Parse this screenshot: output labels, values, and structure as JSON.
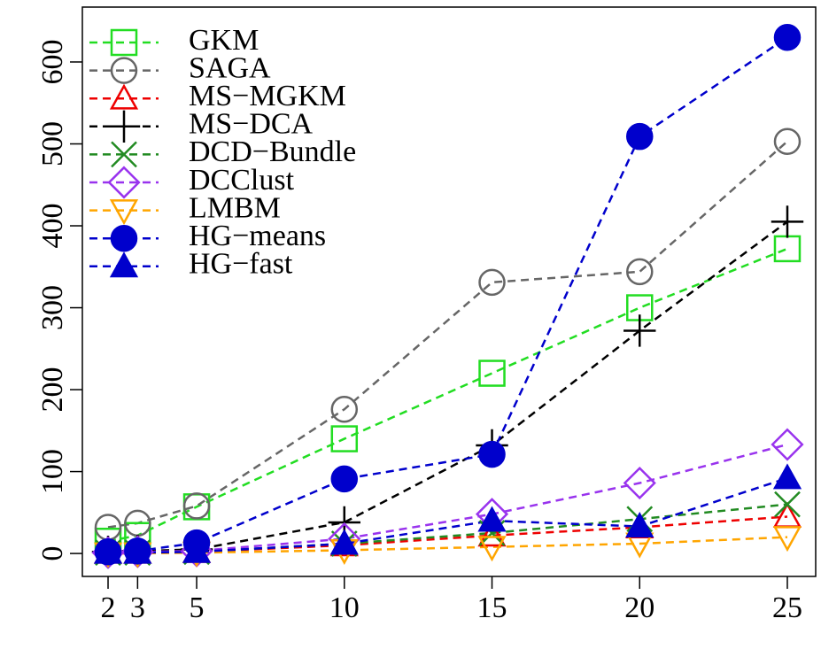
{
  "chart_data": {
    "type": "line",
    "x": [
      2,
      3,
      5,
      10,
      15,
      20,
      25
    ],
    "xlim": [
      1.13,
      25.96
    ],
    "xticks": [
      2,
      3,
      5,
      10,
      15,
      20,
      25
    ],
    "ylim": [
      -28,
      667
    ],
    "yticks": [
      0,
      100,
      200,
      300,
      400,
      500,
      600
    ],
    "legend": "top-left",
    "series": [
      {
        "name": "GKM",
        "color": "#22dd22",
        "marker": "square",
        "values": [
          15,
          22,
          57,
          140,
          220,
          300,
          372
        ]
      },
      {
        "name": "SAGA",
        "color": "#666666",
        "marker": "circle",
        "values": [
          32,
          37,
          58,
          176,
          331,
          344,
          503
        ]
      },
      {
        "name": "MS−MGKM",
        "color": "#ee0000",
        "marker": "triangle",
        "values": [
          1,
          1,
          2,
          10,
          22,
          32,
          45
        ]
      },
      {
        "name": "MS−DCA",
        "color": "#000000",
        "marker": "plus",
        "values": [
          2,
          3,
          5,
          38,
          132,
          272,
          405
        ]
      },
      {
        "name": "DCD−Bundle",
        "color": "#228b22",
        "marker": "cross",
        "values": [
          1,
          1,
          2,
          12,
          25,
          42,
          60
        ]
      },
      {
        "name": "DCClust",
        "color": "#9933ee",
        "marker": "diamond",
        "values": [
          1,
          2,
          3,
          18,
          48,
          86,
          133
        ]
      },
      {
        "name": "LMBM",
        "color": "#ffa500",
        "marker": "down-triangle",
        "values": [
          0,
          0,
          1,
          4,
          8,
          12,
          20
        ]
      },
      {
        "name": "HG−means",
        "color": "#0000cc",
        "marker": "filled-circle",
        "values": [
          2,
          3,
          13,
          91,
          121,
          509,
          630
        ]
      },
      {
        "name": "HG−fast",
        "color": "#0000cc",
        "marker": "filled-triangle",
        "values": [
          1,
          1,
          2,
          12,
          40,
          33,
          92
        ]
      }
    ]
  }
}
